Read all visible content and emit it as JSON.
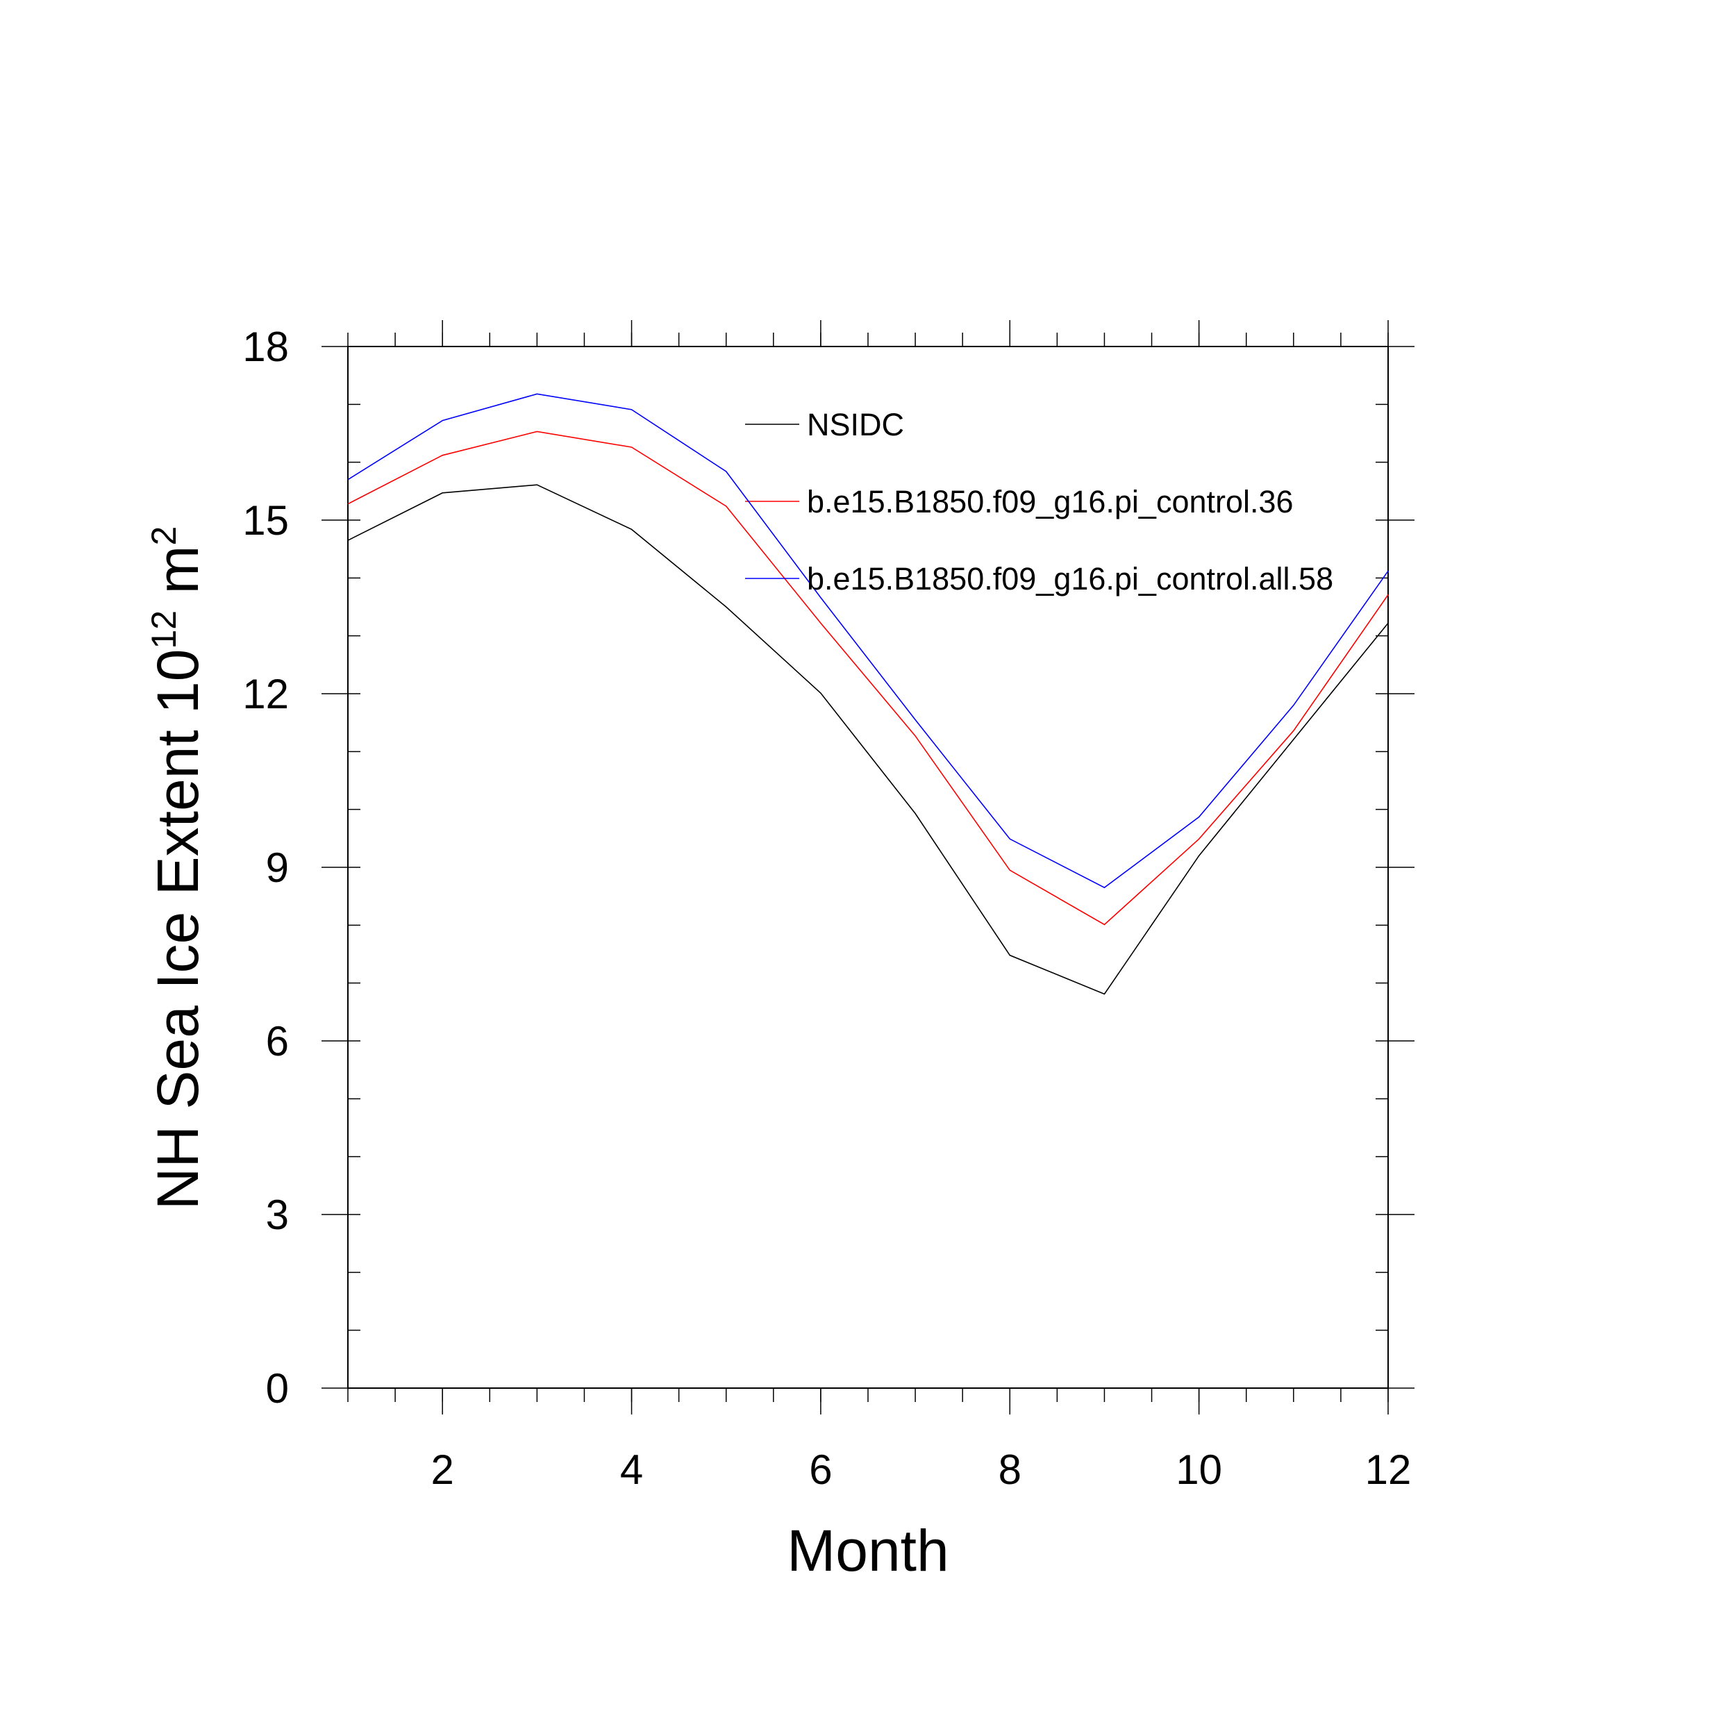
{
  "chart_data": {
    "type": "line",
    "xlabel": "Month",
    "ylabel": {
      "text": "NH Sea Ice Extent 10",
      "exponent": "12",
      "unit": "m",
      "unit_exponent": "2"
    },
    "x": [
      1,
      2,
      3,
      4,
      5,
      6,
      7,
      8,
      9,
      10,
      11,
      12
    ],
    "series": [
      {
        "name": "NSIDC",
        "color": "#000000",
        "values": [
          14.65,
          15.47,
          15.61,
          14.84,
          13.5,
          12.01,
          9.93,
          7.48,
          6.81,
          9.2,
          11.21,
          13.22
        ]
      },
      {
        "name": "b.e15.B1850.f09_g16.pi_control.36",
        "color": "#ff0000",
        "values": [
          15.28,
          16.12,
          16.53,
          16.26,
          15.24,
          13.22,
          11.27,
          8.95,
          8.01,
          9.49,
          11.36,
          13.71
        ]
      },
      {
        "name": "b.e15.B1850.f09_g16.pi_control.all.58",
        "color": "#0000ff",
        "values": [
          15.7,
          16.72,
          17.18,
          16.91,
          15.84,
          13.66,
          11.55,
          9.49,
          8.65,
          9.87,
          11.8,
          14.12
        ]
      }
    ],
    "xlim": [
      1,
      12
    ],
    "xticks": [
      2,
      4,
      6,
      8,
      10,
      12
    ],
    "ylim": [
      0,
      18
    ],
    "yticks": [
      0,
      3,
      6,
      9,
      12,
      15,
      18
    ]
  }
}
